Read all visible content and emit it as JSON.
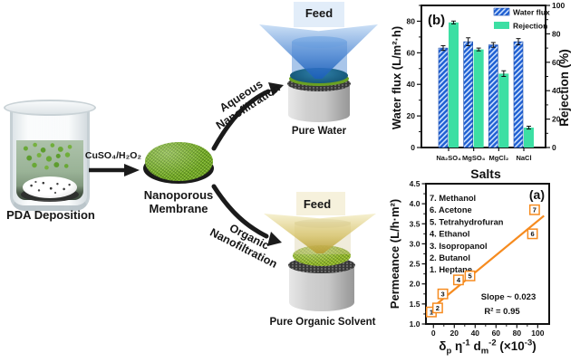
{
  "figure": {
    "background": "#ffffff"
  },
  "schematic": {
    "pda_label": "PDA Deposition",
    "reagent_label": "CuSO₄/H₂O₂",
    "membrane_label_line1": "Nanoporous",
    "membrane_label_line2": "Membrane",
    "aqueous_label_line1": "Aqueous",
    "aqueous_label_line2": "Nanofiltration",
    "organic_label_line1": "Organic",
    "organic_label_line2": "Nanofiltration",
    "feed_top_label": "Feed",
    "feed_bottom_label": "Feed",
    "pure_water_label": "Pure Water",
    "pure_organic_label": "Pure Organic Solvent",
    "colors": {
      "membrane_green": "#6CA41F",
      "feed_water_blue": "#2E73C8",
      "feed_solvent_yellow": "#D9C163",
      "beaker_liquid_green": "#9AB397",
      "arrow_black": "#1B1B1B"
    }
  },
  "chart_data": [
    {
      "id": "b",
      "type": "bar",
      "panel_label": "(b)",
      "xlabel": "Salts",
      "ylabel_left": "Water flux (L/m²·h)",
      "ylabel_right": "Rejection (%)",
      "categories": [
        "Na₂SO₄",
        "MgSO₄",
        "MgCl₂",
        "NaCl"
      ],
      "ylim_left": [
        0,
        90
      ],
      "yticks_left": [
        0,
        20,
        40,
        60,
        80
      ],
      "ylim_right": [
        0,
        100
      ],
      "yticks_right": [
        0,
        20,
        40,
        60,
        80,
        100
      ],
      "legend_position": "top-right",
      "series": [
        {
          "name": "Water flux",
          "axis": "left",
          "style": "hatched",
          "color": "#1E5FD2",
          "hatch_color": "#CDE1FF",
          "values": [
            63,
            67,
            65,
            67
          ],
          "errors": [
            1.5,
            2.5,
            1.5,
            2
          ]
        },
        {
          "name": "Rejection",
          "axis": "right",
          "style": "solid",
          "color": "#3CDFA3",
          "values": [
            88,
            69,
            52,
            14
          ],
          "errors": [
            1,
            1,
            2,
            1
          ]
        }
      ]
    },
    {
      "id": "a",
      "type": "scatter",
      "panel_label": "(a)",
      "ylabel": "Permeance (L/h·m²)",
      "xlabel_plain": "δp η-1 dm-2 (×10-3)",
      "xlabel_segments": [
        {
          "t": "δ",
          "s": "n"
        },
        {
          "t": "p",
          "s": "sub"
        },
        {
          "t": " η",
          "s": "n"
        },
        {
          "t": "-1",
          "s": "sup"
        },
        {
          "t": " d",
          "s": "n"
        },
        {
          "t": "m",
          "s": "sub"
        },
        {
          "t": "-2",
          "s": "sup"
        },
        {
          "t": " (×10",
          "s": "n"
        },
        {
          "t": "-3",
          "s": "sup"
        },
        {
          "t": ")",
          "s": "n"
        }
      ],
      "xlim": [
        -7.2,
        111
      ],
      "xticks": [
        0,
        20,
        40,
        60,
        80,
        100
      ],
      "ylim": [
        1.0,
        4.5
      ],
      "yticks": [
        1.0,
        1.5,
        2.0,
        2.5,
        3.0,
        3.5,
        4.0,
        4.5
      ],
      "accent_color": "#F68B1F",
      "fit_line": {
        "x1": -7,
        "y1": 1.28,
        "x2": 106,
        "y2": 3.7
      },
      "slope_label": "Slope ~ 0.023",
      "r2_label": "R² = 0.95",
      "legend_items": [
        "7. Methanol",
        "6. Acetone",
        "5. Tetrahydrofuran",
        "4. Ethanol",
        "3. Isopropanol",
        "2. Butanol",
        "1. Heptane"
      ],
      "points": [
        {
          "label": "1",
          "solvent": "Heptane",
          "x": -2,
          "y": 1.3
        },
        {
          "label": "2",
          "solvent": "Butanol",
          "x": 4,
          "y": 1.4
        },
        {
          "label": "3",
          "solvent": "Isopropanol",
          "x": 9,
          "y": 1.75
        },
        {
          "label": "4",
          "solvent": "Ethanol",
          "x": 24,
          "y": 2.1
        },
        {
          "label": "5",
          "solvent": "Tetrahydrofuran",
          "x": 35,
          "y": 2.2
        },
        {
          "label": "6",
          "solvent": "Acetone",
          "x": 95,
          "y": 3.25
        },
        {
          "label": "7",
          "solvent": "Methanol",
          "x": 97,
          "y": 3.85
        }
      ]
    }
  ]
}
